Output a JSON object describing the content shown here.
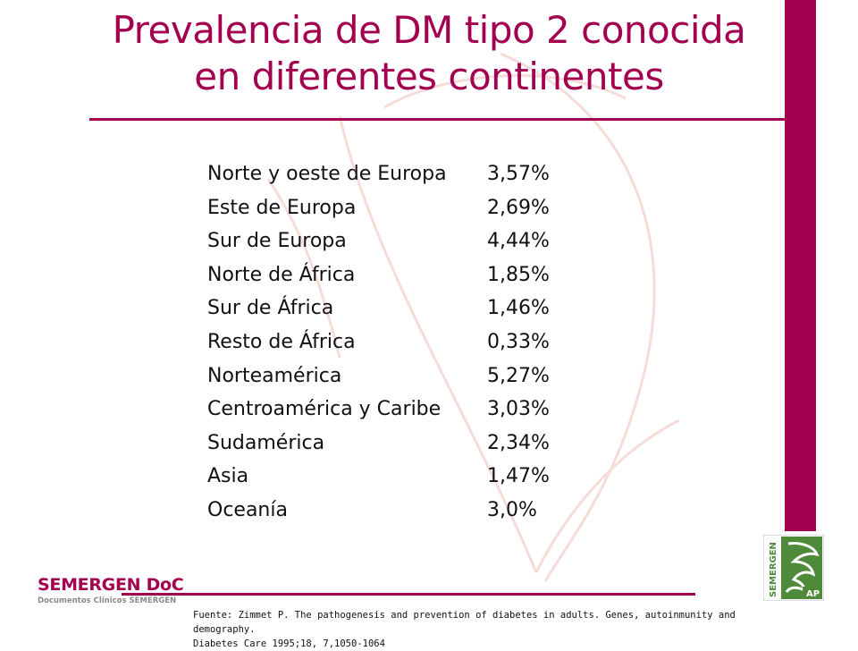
{
  "slide": {
    "title_line1": "Prevalencia de DM tipo 2 conocida",
    "title_line2": "en diferentes continentes"
  },
  "prevalence": {
    "rows": [
      {
        "region": "Norte y oeste de Europa",
        "value": "3,57%"
      },
      {
        "region": "Este de Europa",
        "value": "2,69%"
      },
      {
        "region": "Sur de Europa",
        "value": "4,44%"
      },
      {
        "region": "Norte de África",
        "value": "1,85%"
      },
      {
        "region": "Sur de África",
        "value": "1,46%"
      },
      {
        "region": "Resto de África",
        "value": "0,33%"
      },
      {
        "region": "Norteamérica",
        "value": "5,27%"
      },
      {
        "region": "Centroamérica y Caribe",
        "value": "3,03%"
      },
      {
        "region": "Sudamérica",
        "value": "2,34%"
      },
      {
        "region": "Asia",
        "value": "1,47%"
      },
      {
        "region": "Oceanía",
        "value": "3,0%"
      }
    ]
  },
  "footer": {
    "logo_name": "SEMERGEN DoC",
    "logo_subtitle": "Documentos Clínicos SEMERGEN",
    "source_line1": "Fuente: Zimmet P. The pathogenesis and prevention of diabetes in adults. Genes, autoinmunity  and demography.",
    "source_line2": "Diabetes Care 1995;18, 7,1050-1064",
    "brand_vertical": "SEMERGEN",
    "brand_badge": "AP"
  },
  "colors": {
    "accent": "#a3004f",
    "brand_green": "#4f8a3a",
    "text": "#111111"
  }
}
